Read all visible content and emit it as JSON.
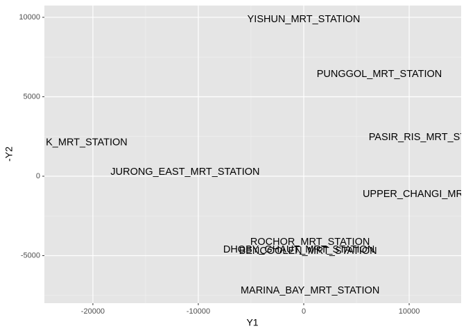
{
  "chart_data": {
    "type": "text-scatter",
    "x_label": "Y1",
    "y_label": "-Y2",
    "xlim": [
      -24600,
      14930
    ],
    "ylim": [
      -7990,
      10740
    ],
    "xticks": [
      -20000,
      -10000,
      0,
      10000
    ],
    "yticks": [
      -5000,
      0,
      5000,
      10000
    ],
    "grid": true,
    "panel_color": "#e5e5e5",
    "labels": [
      "YISHUN_MRT_STATION",
      "PUNGGOL_MRT_STATION",
      "K_MRT_STATION",
      "PASIR_RIS_MRT_STATION",
      "JURONG_EAST_MRT_STATION",
      "UPPER_CHANGI_MRT_STATION",
      "ROCHOR_MRT_STATION",
      "DHOBY_GHAUT_MRT_STATION",
      "BENCOOLEN_MRT_STATION",
      "MARINA_BAY_MRT_STATION"
    ],
    "x": [
      0,
      7170,
      -20590,
      12170,
      -11250,
      12900,
      600,
      -460,
      400,
      600
    ],
    "values": [
      9870,
      6420,
      2110,
      2445,
      260,
      -1135,
      -4150,
      -4630,
      -4715,
      -7205
    ]
  }
}
